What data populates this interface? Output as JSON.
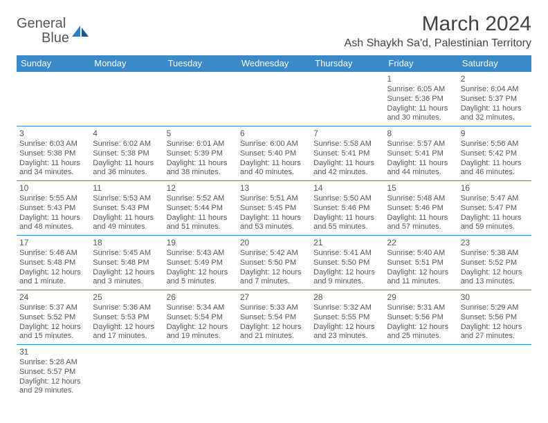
{
  "logo": {
    "text1": "General",
    "text2": "Blue"
  },
  "title": "March 2024",
  "location": "Ash Shaykh Sa'd, Palestinian Territory",
  "colors": {
    "header_bg": "#3b89c9",
    "header_text": "#ffffff",
    "border": "#3b89c9",
    "text": "#565656",
    "title_text": "#424242",
    "logo_gray": "#555555",
    "logo_blue": "#2f7fc3"
  },
  "dayHeaders": [
    "Sunday",
    "Monday",
    "Tuesday",
    "Wednesday",
    "Thursday",
    "Friday",
    "Saturday"
  ],
  "weeks": [
    [
      null,
      null,
      null,
      null,
      null,
      {
        "n": "1",
        "sr": "Sunrise: 6:05 AM",
        "ss": "Sunset: 5:36 PM",
        "dl": "Daylight: 11 hours and 30 minutes."
      },
      {
        "n": "2",
        "sr": "Sunrise: 6:04 AM",
        "ss": "Sunset: 5:37 PM",
        "dl": "Daylight: 11 hours and 32 minutes."
      }
    ],
    [
      {
        "n": "3",
        "sr": "Sunrise: 6:03 AM",
        "ss": "Sunset: 5:38 PM",
        "dl": "Daylight: 11 hours and 34 minutes."
      },
      {
        "n": "4",
        "sr": "Sunrise: 6:02 AM",
        "ss": "Sunset: 5:38 PM",
        "dl": "Daylight: 11 hours and 36 minutes."
      },
      {
        "n": "5",
        "sr": "Sunrise: 6:01 AM",
        "ss": "Sunset: 5:39 PM",
        "dl": "Daylight: 11 hours and 38 minutes."
      },
      {
        "n": "6",
        "sr": "Sunrise: 6:00 AM",
        "ss": "Sunset: 5:40 PM",
        "dl": "Daylight: 11 hours and 40 minutes."
      },
      {
        "n": "7",
        "sr": "Sunrise: 5:58 AM",
        "ss": "Sunset: 5:41 PM",
        "dl": "Daylight: 11 hours and 42 minutes."
      },
      {
        "n": "8",
        "sr": "Sunrise: 5:57 AM",
        "ss": "Sunset: 5:41 PM",
        "dl": "Daylight: 11 hours and 44 minutes."
      },
      {
        "n": "9",
        "sr": "Sunrise: 5:56 AM",
        "ss": "Sunset: 5:42 PM",
        "dl": "Daylight: 11 hours and 46 minutes."
      }
    ],
    [
      {
        "n": "10",
        "sr": "Sunrise: 5:55 AM",
        "ss": "Sunset: 5:43 PM",
        "dl": "Daylight: 11 hours and 48 minutes."
      },
      {
        "n": "11",
        "sr": "Sunrise: 5:53 AM",
        "ss": "Sunset: 5:43 PM",
        "dl": "Daylight: 11 hours and 49 minutes."
      },
      {
        "n": "12",
        "sr": "Sunrise: 5:52 AM",
        "ss": "Sunset: 5:44 PM",
        "dl": "Daylight: 11 hours and 51 minutes."
      },
      {
        "n": "13",
        "sr": "Sunrise: 5:51 AM",
        "ss": "Sunset: 5:45 PM",
        "dl": "Daylight: 11 hours and 53 minutes."
      },
      {
        "n": "14",
        "sr": "Sunrise: 5:50 AM",
        "ss": "Sunset: 5:46 PM",
        "dl": "Daylight: 11 hours and 55 minutes."
      },
      {
        "n": "15",
        "sr": "Sunrise: 5:48 AM",
        "ss": "Sunset: 5:46 PM",
        "dl": "Daylight: 11 hours and 57 minutes."
      },
      {
        "n": "16",
        "sr": "Sunrise: 5:47 AM",
        "ss": "Sunset: 5:47 PM",
        "dl": "Daylight: 11 hours and 59 minutes."
      }
    ],
    [
      {
        "n": "17",
        "sr": "Sunrise: 5:46 AM",
        "ss": "Sunset: 5:48 PM",
        "dl": "Daylight: 12 hours and 1 minute."
      },
      {
        "n": "18",
        "sr": "Sunrise: 5:45 AM",
        "ss": "Sunset: 5:48 PM",
        "dl": "Daylight: 12 hours and 3 minutes."
      },
      {
        "n": "19",
        "sr": "Sunrise: 5:43 AM",
        "ss": "Sunset: 5:49 PM",
        "dl": "Daylight: 12 hours and 5 minutes."
      },
      {
        "n": "20",
        "sr": "Sunrise: 5:42 AM",
        "ss": "Sunset: 5:50 PM",
        "dl": "Daylight: 12 hours and 7 minutes."
      },
      {
        "n": "21",
        "sr": "Sunrise: 5:41 AM",
        "ss": "Sunset: 5:50 PM",
        "dl": "Daylight: 12 hours and 9 minutes."
      },
      {
        "n": "22",
        "sr": "Sunrise: 5:40 AM",
        "ss": "Sunset: 5:51 PM",
        "dl": "Daylight: 12 hours and 11 minutes."
      },
      {
        "n": "23",
        "sr": "Sunrise: 5:38 AM",
        "ss": "Sunset: 5:52 PM",
        "dl": "Daylight: 12 hours and 13 minutes."
      }
    ],
    [
      {
        "n": "24",
        "sr": "Sunrise: 5:37 AM",
        "ss": "Sunset: 5:52 PM",
        "dl": "Daylight: 12 hours and 15 minutes."
      },
      {
        "n": "25",
        "sr": "Sunrise: 5:36 AM",
        "ss": "Sunset: 5:53 PM",
        "dl": "Daylight: 12 hours and 17 minutes."
      },
      {
        "n": "26",
        "sr": "Sunrise: 5:34 AM",
        "ss": "Sunset: 5:54 PM",
        "dl": "Daylight: 12 hours and 19 minutes."
      },
      {
        "n": "27",
        "sr": "Sunrise: 5:33 AM",
        "ss": "Sunset: 5:54 PM",
        "dl": "Daylight: 12 hours and 21 minutes."
      },
      {
        "n": "28",
        "sr": "Sunrise: 5:32 AM",
        "ss": "Sunset: 5:55 PM",
        "dl": "Daylight: 12 hours and 23 minutes."
      },
      {
        "n": "29",
        "sr": "Sunrise: 5:31 AM",
        "ss": "Sunset: 5:56 PM",
        "dl": "Daylight: 12 hours and 25 minutes."
      },
      {
        "n": "30",
        "sr": "Sunrise: 5:29 AM",
        "ss": "Sunset: 5:56 PM",
        "dl": "Daylight: 12 hours and 27 minutes."
      }
    ],
    [
      {
        "n": "31",
        "sr": "Sunrise: 5:28 AM",
        "ss": "Sunset: 5:57 PM",
        "dl": "Daylight: 12 hours and 29 minutes."
      },
      null,
      null,
      null,
      null,
      null,
      null
    ]
  ]
}
